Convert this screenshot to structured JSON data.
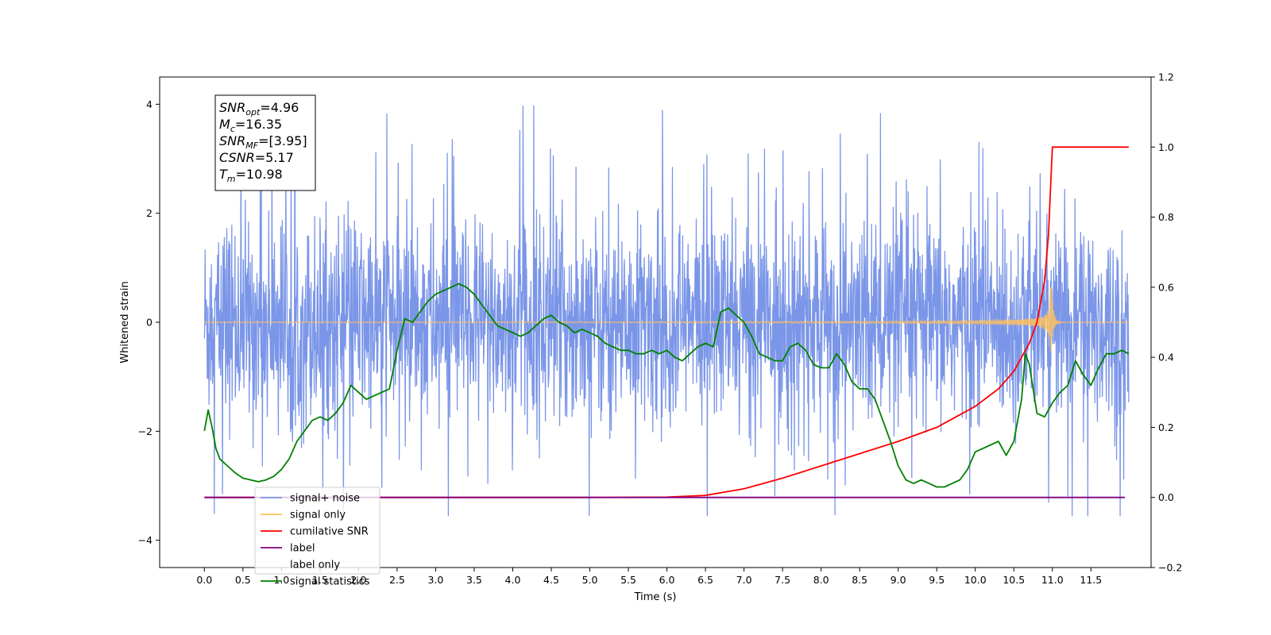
{
  "chart_data": {
    "type": "line",
    "xlabel": "Time (s)",
    "ylabel": "Whitened strain",
    "xlim": [
      -0.58,
      12.28
    ],
    "ylim": [
      -4.5,
      4.5
    ],
    "y2lim": [
      -0.2,
      1.2
    ],
    "x_ticks": [
      0.0,
      0.5,
      1.0,
      1.5,
      2.0,
      2.5,
      3.0,
      3.5,
      4.0,
      4.5,
      5.0,
      5.5,
      6.0,
      6.5,
      7.0,
      7.5,
      8.0,
      8.5,
      9.0,
      9.5,
      10.0,
      10.5,
      11.0,
      11.5
    ],
    "x_tick_labels": [
      "0.0",
      "0.5",
      "1.0",
      "1.5",
      "2.0",
      "2.5",
      "3.0",
      "3.5",
      "4.0",
      "4.5",
      "5.0",
      "5.5",
      "6.0",
      "6.5",
      "7.0",
      "7.5",
      "8.0",
      "8.5",
      "9.0",
      "9.5",
      "10.0",
      "10.5",
      "11.0",
      "11.5"
    ],
    "y_ticks": [
      -4,
      -2,
      0,
      2,
      4
    ],
    "y_tick_labels": [
      "−4",
      "−2",
      "0",
      "2",
      "4"
    ],
    "y2_ticks": [
      -0.2,
      0.0,
      0.2,
      0.4,
      0.6,
      0.8,
      1.0,
      1.2
    ],
    "y2_tick_labels": [
      "−0.2",
      "0.0",
      "0.2",
      "0.4",
      "0.6",
      "0.8",
      "1.0",
      "1.2"
    ],
    "grid": false,
    "legend_position": "lower-left",
    "info_box": {
      "lines": [
        {
          "sym": "SNR",
          "sub": "opt",
          "val": "=4.96"
        },
        {
          "sym": "M",
          "sub": "c",
          "val": "=16.35"
        },
        {
          "sym": "SNR",
          "sub": "MF",
          "val": "=[3.95]"
        },
        {
          "sym": "CSNR",
          "sub": "",
          "val": "=5.17"
        },
        {
          "sym": "T",
          "sub": "m",
          "val": "=10.98"
        }
      ]
    },
    "series": [
      {
        "name": "signal+ noise",
        "color": "#7b96e8",
        "axis": "left",
        "style": "noise",
        "x_range": [
          0.0,
          11.99
        ],
        "approx_band": [
          -1.8,
          1.8
        ],
        "approx_extremes": [
          -3.55,
          4.12
        ]
      },
      {
        "name": "signal only",
        "color": "#ffc15e",
        "axis": "left",
        "style": "chirp",
        "x_range": [
          0.0,
          11.99
        ],
        "merger_time": 10.98,
        "peak_amplitude": 0.95
      },
      {
        "name": "cumilative SNR",
        "color": "#ff0000",
        "axis": "right",
        "x": [
          0.0,
          5.0,
          6.0,
          6.5,
          7.0,
          7.5,
          8.0,
          8.5,
          9.0,
          9.5,
          10.0,
          10.3,
          10.5,
          10.7,
          10.8,
          10.9,
          10.95,
          10.98,
          11.0,
          11.99
        ],
        "y": [
          0.0,
          0.0,
          0.001,
          0.006,
          0.025,
          0.055,
          0.09,
          0.125,
          0.16,
          0.2,
          0.26,
          0.31,
          0.36,
          0.44,
          0.5,
          0.62,
          0.75,
          0.9,
          1.0,
          1.0
        ]
      },
      {
        "name": "label",
        "color": "#800080",
        "axis": "right",
        "x": [
          0.0,
          11.94
        ],
        "y": [
          0.0,
          0.0
        ]
      },
      {
        "name": "label only",
        "color": "#ffffff",
        "axis": "right",
        "x": [],
        "y": []
      },
      {
        "name": "signal statistics",
        "color": "#008000",
        "axis": "right",
        "x": [
          0.0,
          0.05,
          0.1,
          0.15,
          0.2,
          0.3,
          0.4,
          0.5,
          0.6,
          0.7,
          0.8,
          0.9,
          1.0,
          1.1,
          1.2,
          1.3,
          1.4,
          1.5,
          1.6,
          1.7,
          1.8,
          1.9,
          2.0,
          2.1,
          2.2,
          2.3,
          2.4,
          2.5,
          2.6,
          2.7,
          2.8,
          2.9,
          3.0,
          3.1,
          3.2,
          3.3,
          3.4,
          3.5,
          3.6,
          3.7,
          3.8,
          3.9,
          4.0,
          4.1,
          4.2,
          4.3,
          4.4,
          4.5,
          4.6,
          4.7,
          4.8,
          4.9,
          5.0,
          5.1,
          5.2,
          5.3,
          5.4,
          5.5,
          5.6,
          5.7,
          5.8,
          5.9,
          6.0,
          6.1,
          6.2,
          6.3,
          6.4,
          6.5,
          6.6,
          6.7,
          6.8,
          6.9,
          7.0,
          7.1,
          7.2,
          7.3,
          7.4,
          7.5,
          7.6,
          7.7,
          7.8,
          7.9,
          8.0,
          8.1,
          8.2,
          8.3,
          8.4,
          8.5,
          8.6,
          8.7,
          8.8,
          8.9,
          9.0,
          9.1,
          9.2,
          9.3,
          9.4,
          9.5,
          9.6,
          9.7,
          9.8,
          9.9,
          10.0,
          10.1,
          10.2,
          10.3,
          10.4,
          10.5,
          10.6,
          10.65,
          10.7,
          10.8,
          10.9,
          11.0,
          11.1,
          11.2,
          11.3,
          11.4,
          11.5,
          11.6,
          11.7,
          11.8,
          11.9,
          11.99
        ],
        "y": [
          0.19,
          0.25,
          0.2,
          0.14,
          0.11,
          0.09,
          0.07,
          0.055,
          0.05,
          0.045,
          0.05,
          0.06,
          0.08,
          0.11,
          0.16,
          0.19,
          0.22,
          0.23,
          0.22,
          0.24,
          0.27,
          0.32,
          0.3,
          0.28,
          0.29,
          0.3,
          0.31,
          0.42,
          0.51,
          0.5,
          0.53,
          0.56,
          0.58,
          0.59,
          0.6,
          0.61,
          0.6,
          0.58,
          0.55,
          0.52,
          0.49,
          0.48,
          0.47,
          0.46,
          0.47,
          0.49,
          0.51,
          0.52,
          0.5,
          0.49,
          0.47,
          0.48,
          0.47,
          0.46,
          0.44,
          0.43,
          0.42,
          0.42,
          0.41,
          0.41,
          0.42,
          0.41,
          0.42,
          0.4,
          0.39,
          0.41,
          0.43,
          0.44,
          0.43,
          0.53,
          0.54,
          0.52,
          0.5,
          0.46,
          0.41,
          0.4,
          0.39,
          0.39,
          0.43,
          0.44,
          0.42,
          0.38,
          0.37,
          0.37,
          0.41,
          0.38,
          0.33,
          0.31,
          0.31,
          0.28,
          0.22,
          0.16,
          0.09,
          0.05,
          0.04,
          0.05,
          0.04,
          0.03,
          0.03,
          0.04,
          0.05,
          0.08,
          0.13,
          0.14,
          0.15,
          0.16,
          0.12,
          0.16,
          0.28,
          0.41,
          0.38,
          0.24,
          0.23,
          0.27,
          0.3,
          0.32,
          0.39,
          0.35,
          0.32,
          0.37,
          0.41,
          0.41,
          0.42,
          0.41
        ]
      }
    ]
  }
}
